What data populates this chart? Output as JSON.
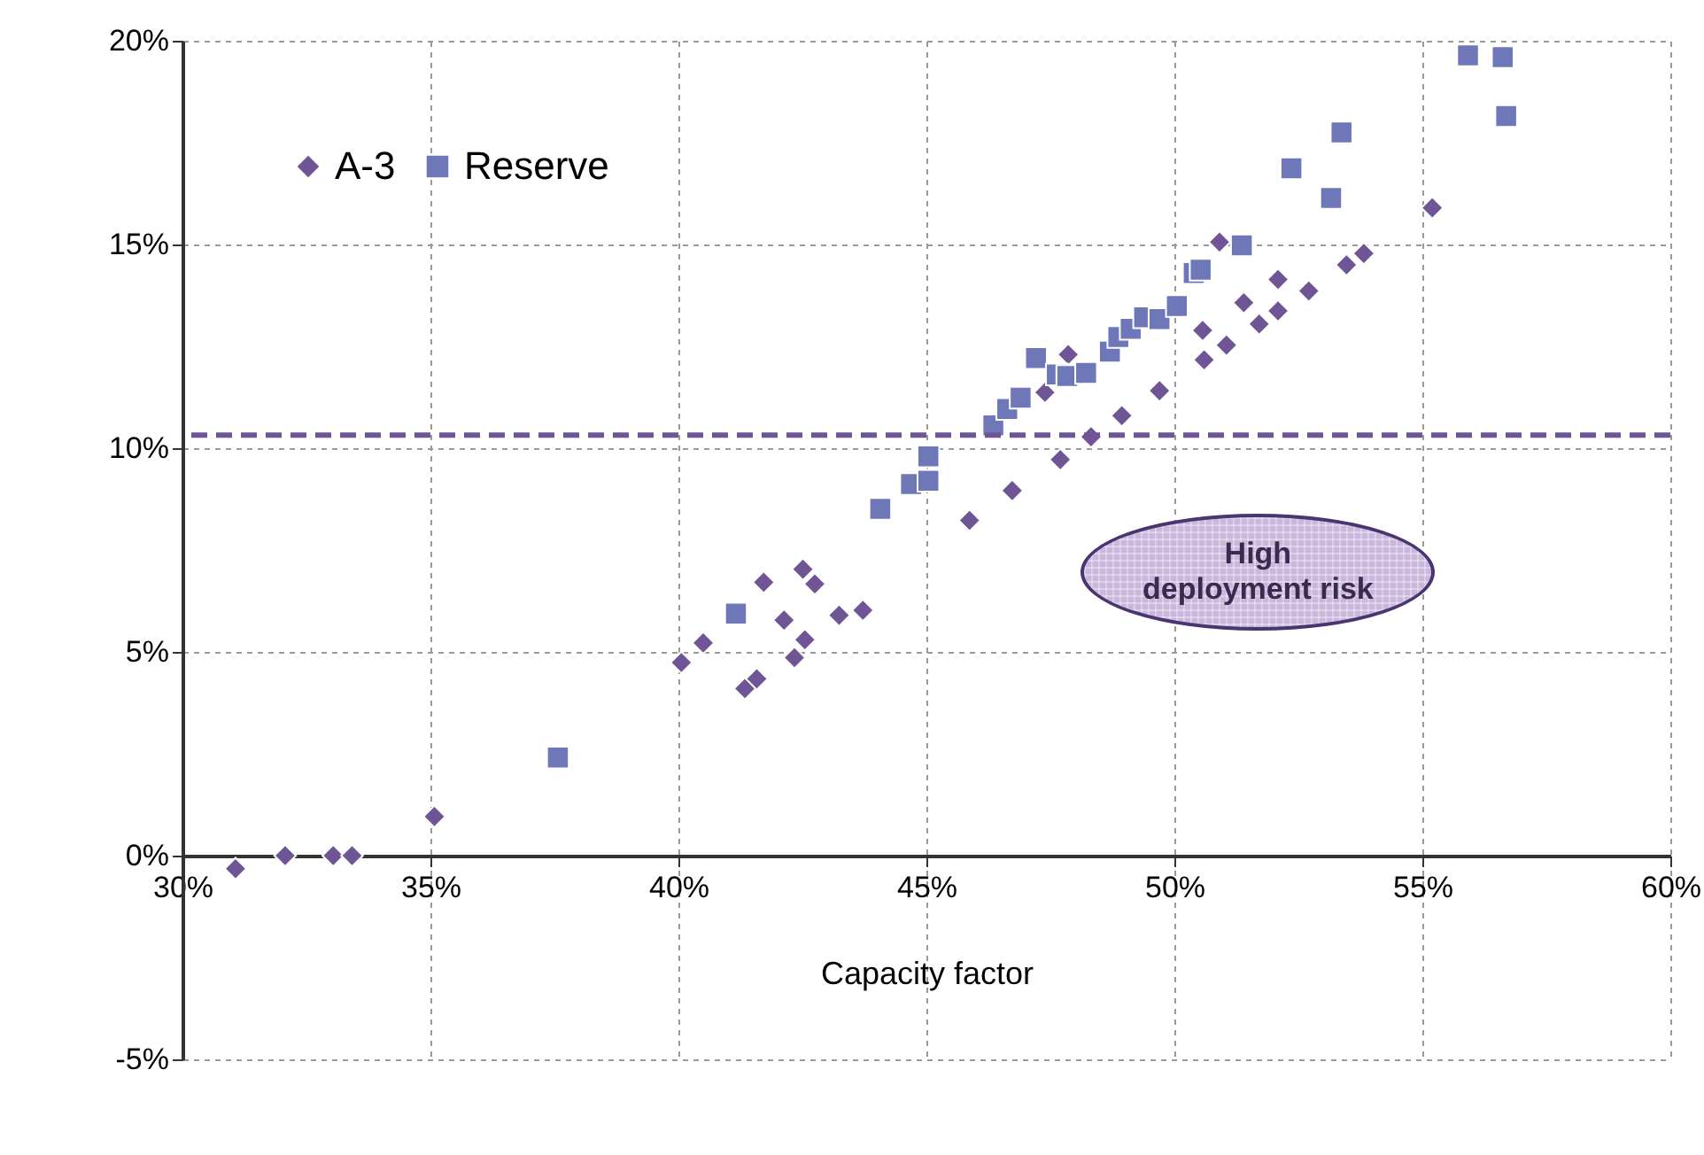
{
  "chart_data": {
    "type": "scatter",
    "xlabel": "Capacity factor",
    "xlim": [
      30,
      60
    ],
    "xticks": [
      {
        "value": 30,
        "label": "30%"
      },
      {
        "value": 35,
        "label": "35%"
      },
      {
        "value": 40,
        "label": "40%"
      },
      {
        "value": 45,
        "label": "45%"
      },
      {
        "value": 50,
        "label": "50%"
      },
      {
        "value": 55,
        "label": "55%"
      },
      {
        "value": 60,
        "label": "60%"
      }
    ],
    "ylim": [
      -5,
      20
    ],
    "yticks": [
      {
        "value": -5,
        "label": "-5%"
      },
      {
        "value": 0,
        "label": "0%"
      },
      {
        "value": 5,
        "label": "5%"
      },
      {
        "value": 10,
        "label": "10%"
      },
      {
        "value": 15,
        "label": "15%"
      },
      {
        "value": 20,
        "label": "20%"
      }
    ],
    "grid": true,
    "legend": "top left",
    "series": [
      {
        "name": "A-3",
        "color": "#6f5496",
        "marker": "diamond",
        "x": [
          31.07,
          32.07,
          33.04,
          33.42,
          35.08,
          40.06,
          40.5,
          41.34,
          41.58,
          41.72,
          42.13,
          42.34,
          42.55,
          42.51,
          42.75,
          43.24,
          43.72,
          45.87,
          46.73,
          47.39,
          47.7,
          47.86,
          48.32,
          48.94,
          49.7,
          50.57,
          50.6,
          50.91,
          51.05,
          51.4,
          51.71,
          52.09,
          52.09,
          52.71,
          53.47,
          53.82,
          55.2
        ],
        "values": [
          -0.32,
          0,
          0,
          0,
          0.96,
          4.74,
          5.22,
          4.1,
          4.34,
          6.71,
          5.78,
          4.86,
          5.3,
          7.03,
          6.67,
          5.9,
          6.02,
          8.23,
          8.96,
          11.37,
          9.72,
          12.3,
          10.28,
          10.8,
          11.41,
          12.89,
          12.17,
          15.06,
          12.53,
          13.57,
          13.05,
          13.37,
          14.14,
          13.86,
          14.5,
          14.78,
          15.9
        ]
      },
      {
        "name": "Reserve",
        "color": "#6e78b8",
        "marker": "square",
        "x": [
          37.57,
          41.16,
          44.07,
          44.69,
          45.04,
          45.04,
          46.35,
          46.63,
          46.9,
          47.21,
          47.63,
          47.84,
          48.22,
          48.7,
          48.87,
          49.12,
          49.39,
          49.7,
          50.05,
          50.39,
          50.53,
          51.36,
          52.36,
          53.16,
          53.37,
          55.92,
          56.62,
          56.69
        ],
        "values": [
          2.41,
          5.94,
          8.51,
          9.12,
          9.2,
          9.8,
          10.56,
          10.96,
          11.24,
          12.21,
          11.81,
          11.77,
          11.85,
          12.37,
          12.73,
          12.93,
          13.21,
          13.17,
          13.49,
          14.3,
          14.38,
          14.98,
          16.87,
          16.14,
          17.75,
          19.64,
          19.6,
          18.15
        ]
      }
    ],
    "ref_lines": [
      {
        "axis": "y",
        "value": 10.32,
        "color": "#6f5496",
        "line_style": "dashed"
      }
    ],
    "annotations": [
      "High deployment risk"
    ]
  }
}
